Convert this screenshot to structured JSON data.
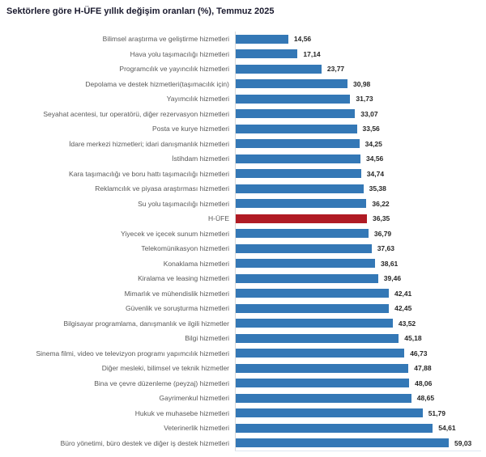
{
  "chart_data": {
    "type": "bar",
    "orientation": "horizontal",
    "title": "Sektörlere göre H-ÜFE yıllık değişim oranları (%), Temmuz 2025",
    "xlabel": "",
    "ylabel": "",
    "xlim": [
      0,
      60
    ],
    "grid": false,
    "legend": false,
    "value_labels_shown": true,
    "decimal_separator": ",",
    "highlight_category": "H-ÜFE",
    "categories": [
      "Bilimsel araştırma ve geliştirme hizmetleri",
      "Hava yolu taşımacılığı hizmetleri",
      "Programcılık ve yayıncılık hizmetleri",
      "Depolama ve destek hizmetleri(taşımacılık için)",
      "Yayımcılık hizmetleri",
      "Seyahat acentesi, tur operatörü, diğer rezervasyon hizmetleri",
      "Posta ve kurye hizmetleri",
      "İdare merkezi hizmetleri; idari danışmanlık hizmetleri",
      "İstihdam hizmetleri",
      "Kara taşımacılığı ve boru hattı taşımacılığı hizmetleri",
      "Reklamcılık ve piyasa araştırması hizmetleri",
      "Su yolu taşımacılığı hizmetleri",
      "H-ÜFE",
      "Yiyecek ve içecek sunum hizmetleri",
      "Telekomünikasyon hizmetleri",
      "Konaklama hizmetleri",
      "Kiralama ve leasing hizmetleri",
      "Mimarlık ve mühendislik hizmetleri",
      "Güvenlik ve soruşturma hizmetleri",
      "Bilgisayar programlama, danışmanlık ve ilgili hizmetler",
      "Bilgi hizmetleri",
      "Sinema filmi, video ve televizyon programı yapımcılık hizmetleri",
      "Diğer mesleki, bilimsel ve teknik hizmetler",
      "Bina ve çevre düzenleme (peyzaj) hizmetleri",
      "Gayrimenkul hizmetleri",
      "Hukuk ve muhasebe hizmetleri",
      "Veterinerlik hizmetleri",
      "Büro yönetimi, büro destek ve diğer iş destek hizmetleri"
    ],
    "values": [
      14.56,
      17.14,
      23.77,
      30.98,
      31.73,
      33.07,
      33.56,
      34.25,
      34.56,
      34.74,
      35.38,
      36.22,
      36.35,
      36.79,
      37.63,
      38.61,
      39.46,
      42.41,
      42.45,
      43.52,
      45.18,
      46.73,
      47.88,
      48.06,
      48.65,
      51.79,
      54.61,
      59.03
    ],
    "display_values": [
      "14,56",
      "17,14",
      "23,77",
      "30,98",
      "31,73",
      "33,07",
      "33,56",
      "34,25",
      "34,56",
      "34,74",
      "35,38",
      "36,22",
      "36,35",
      "36,79",
      "37,63",
      "38,61",
      "39,46",
      "42,41",
      "42,45",
      "43,52",
      "45,18",
      "46,73",
      "47,88",
      "48,06",
      "48,65",
      "51,79",
      "54,61",
      "59,03"
    ],
    "colors": {
      "bar": "#3478b6",
      "highlight_bar": "#b01b24",
      "category_label": "#595959",
      "value_label": "#262626",
      "title": "#1a1a2e",
      "axis_line": "#d9d9d9",
      "baseline": "#dce6f1"
    }
  }
}
